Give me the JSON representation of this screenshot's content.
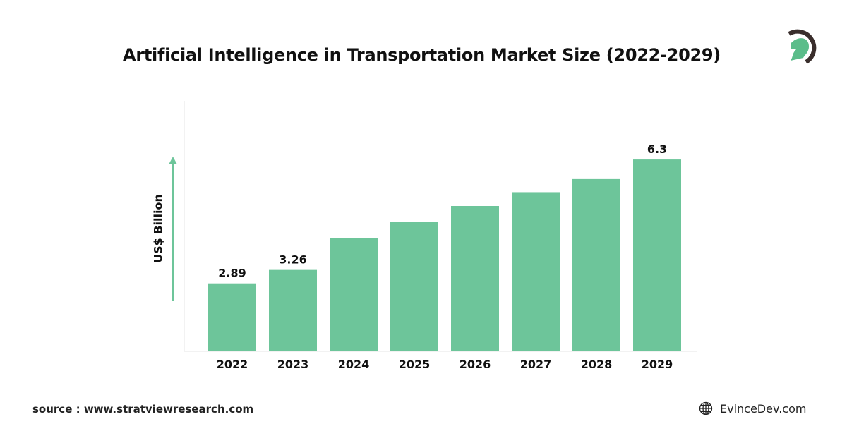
{
  "chart_data": {
    "type": "bar",
    "title": "Artificial Intelligence in Transportation Market Size (2022-2029)",
    "ylabel": "US$ Billion",
    "xlabel": "",
    "categories": [
      "2022",
      "2023",
      "2024",
      "2025",
      "2026",
      "2027",
      "2028",
      "2029"
    ],
    "values": [
      2.89,
      3.26,
      4.14,
      4.59,
      5.02,
      5.4,
      5.76,
      6.3
    ],
    "data_labels": [
      "2.89",
      "3.26",
      "",
      "",
      "",
      "",
      "",
      "6.3"
    ],
    "bar_color": "#6dc59a",
    "grid": false,
    "legend": "none"
  },
  "footer": {
    "source": "source : www.stratviewresearch.com",
    "brand": "EvinceDev.com",
    "brand_icon": "globe-icon"
  },
  "logo": {
    "icon": "spartan-helmet-logo",
    "colors": [
      "#3a2e2c",
      "#5bbd8a"
    ]
  }
}
